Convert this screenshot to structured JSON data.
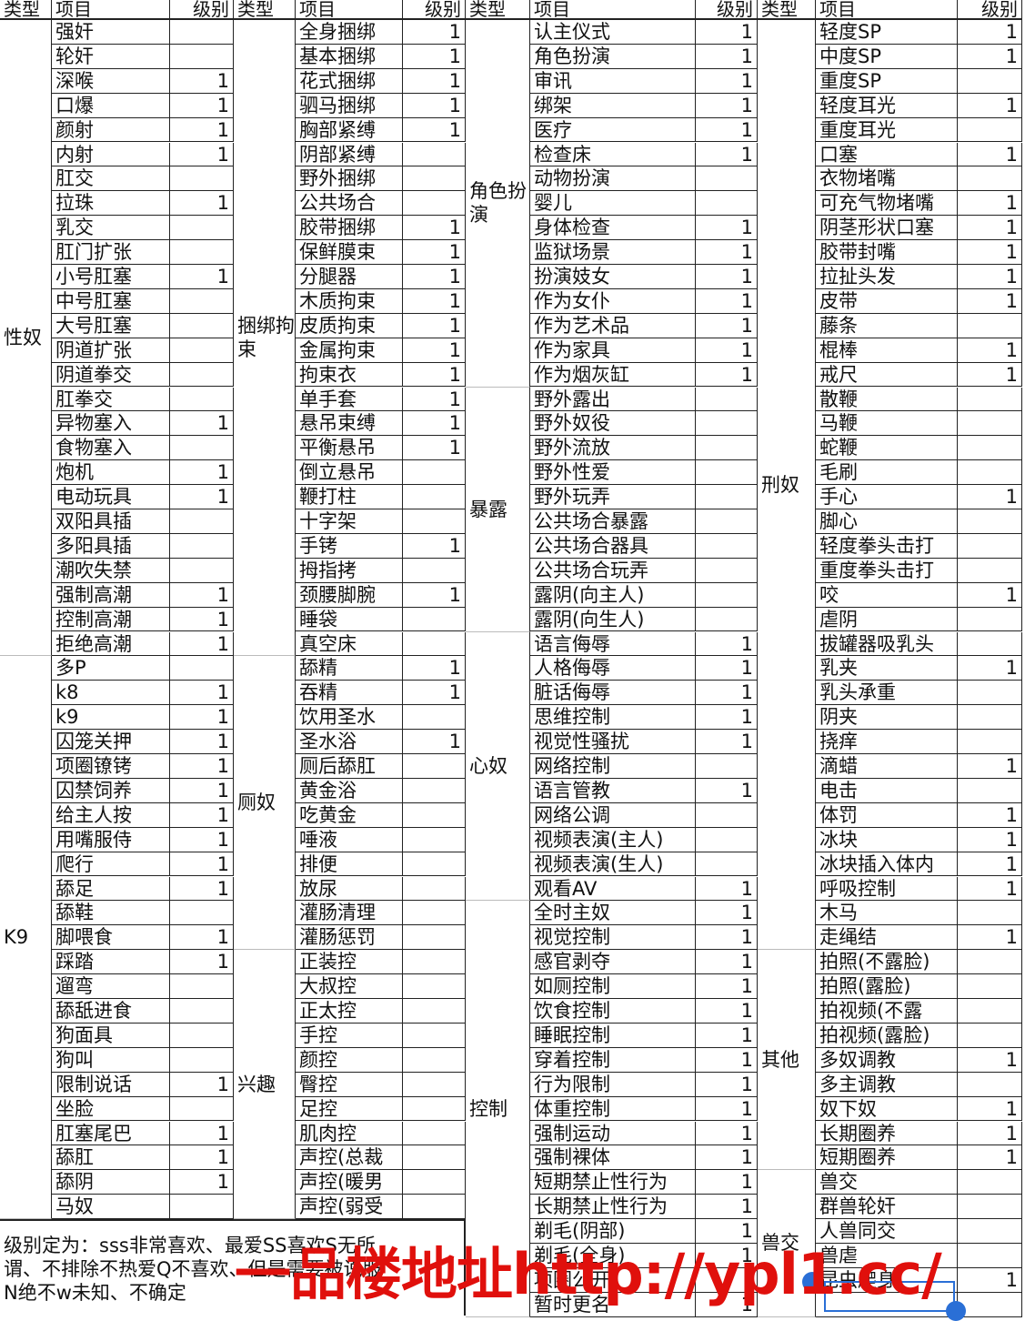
{
  "headers": {
    "type": "类型",
    "item": "项目",
    "level": "级别"
  },
  "groups": [
    {
      "sections": [
        {
          "type": "性奴",
          "rows": [
            [
              "强奸",
              ""
            ],
            [
              "轮奸",
              ""
            ],
            [
              "深喉",
              "1"
            ],
            [
              "口爆",
              "1"
            ],
            [
              "颜射",
              "1"
            ],
            [
              "内射",
              "1"
            ],
            [
              "肛交",
              ""
            ],
            [
              "拉珠",
              "1"
            ],
            [
              "乳交",
              ""
            ],
            [
              "肛门扩张",
              ""
            ],
            [
              "小号肛塞",
              "1"
            ],
            [
              "中号肛塞",
              ""
            ],
            [
              "大号肛塞",
              ""
            ],
            [
              "阴道扩张",
              ""
            ],
            [
              "阴道拳交",
              ""
            ],
            [
              "肛拳交",
              ""
            ],
            [
              "异物塞入",
              "1"
            ],
            [
              "食物塞入",
              ""
            ],
            [
              "炮机",
              "1"
            ],
            [
              "电动玩具",
              "1"
            ],
            [
              "双阳具插",
              ""
            ],
            [
              "多阳具插",
              ""
            ],
            [
              "潮吹失禁",
              ""
            ],
            [
              "强制高潮",
              "1"
            ],
            [
              "控制高潮",
              "1"
            ],
            [
              "拒绝高潮",
              "1"
            ]
          ]
        },
        {
          "type": "K9",
          "rows": [
            [
              "多P",
              ""
            ],
            [
              "k8",
              "1"
            ],
            [
              "k9",
              "1"
            ],
            [
              "囚笼关押",
              "1"
            ],
            [
              "项圈镣铐",
              "1"
            ],
            [
              "囚禁饲养",
              "1"
            ],
            [
              "给主人按",
              "1"
            ],
            [
              "用嘴服侍",
              "1"
            ],
            [
              "爬行",
              "1"
            ],
            [
              "舔足",
              "1"
            ],
            [
              "舔鞋",
              ""
            ],
            [
              "脚喂食",
              "1"
            ],
            [
              "踩踏",
              "1"
            ],
            [
              "遛弯",
              ""
            ],
            [
              "舔舐进食",
              ""
            ],
            [
              "狗面具",
              ""
            ],
            [
              "狗叫",
              ""
            ],
            [
              "限制说话",
              "1"
            ],
            [
              "坐脸",
              ""
            ],
            [
              "肛塞尾巴",
              "1"
            ],
            [
              "舔肛",
              "1"
            ],
            [
              "舔阴",
              "1"
            ],
            [
              "马奴",
              ""
            ]
          ]
        }
      ]
    },
    {
      "sections": [
        {
          "type": "捆绑拘束",
          "rows": [
            [
              "全身捆绑",
              "1"
            ],
            [
              "基本捆绑",
              "1"
            ],
            [
              "花式捆绑",
              "1"
            ],
            [
              "驷马捆绑",
              "1"
            ],
            [
              "胸部紧缚",
              "1"
            ],
            [
              "阴部紧缚",
              ""
            ],
            [
              "野外捆绑",
              ""
            ],
            [
              "公共场合",
              ""
            ],
            [
              "胶带捆绑",
              "1"
            ],
            [
              "保鲜膜束",
              "1"
            ],
            [
              "分腿器",
              "1"
            ],
            [
              "木质拘束",
              "1"
            ],
            [
              "皮质拘束",
              "1"
            ],
            [
              "金属拘束",
              "1"
            ],
            [
              "拘束衣",
              "1"
            ],
            [
              "单手套",
              "1"
            ],
            [
              "悬吊束缚",
              "1"
            ],
            [
              "平衡悬吊",
              "1"
            ],
            [
              "倒立悬吊",
              ""
            ],
            [
              "鞭打柱",
              ""
            ],
            [
              "十字架",
              ""
            ],
            [
              "手铐",
              "1"
            ],
            [
              "拇指拷",
              ""
            ],
            [
              "颈腰脚腕",
              "1"
            ],
            [
              "睡袋",
              ""
            ],
            [
              "真空床",
              ""
            ]
          ]
        },
        {
          "type": "厕奴",
          "rows": [
            [
              "舔精",
              "1"
            ],
            [
              "吞精",
              "1"
            ],
            [
              "饮用圣水",
              ""
            ],
            [
              "圣水浴",
              "1"
            ],
            [
              "厕后舔肛",
              ""
            ],
            [
              "黄金浴",
              ""
            ],
            [
              "吃黄金",
              ""
            ],
            [
              "唾液",
              ""
            ],
            [
              "排便",
              ""
            ],
            [
              "放尿",
              ""
            ],
            [
              "灌肠清理",
              ""
            ],
            [
              "灌肠惩罚",
              ""
            ]
          ]
        },
        {
          "type": "兴趣",
          "rows": [
            [
              "正装控",
              ""
            ],
            [
              "大叔控",
              ""
            ],
            [
              "正太控",
              ""
            ],
            [
              "手控",
              ""
            ],
            [
              "颜控",
              ""
            ],
            [
              "臀控",
              ""
            ],
            [
              "足控",
              ""
            ],
            [
              "肌肉控",
              ""
            ],
            [
              "声控(总裁",
              ""
            ],
            [
              "声控(暖男",
              ""
            ],
            [
              "声控(弱受",
              ""
            ]
          ]
        }
      ]
    },
    {
      "sections": [
        {
          "type": "角色扮演",
          "rows": [
            [
              "认主仪式",
              "1"
            ],
            [
              "角色扮演",
              "1"
            ],
            [
              "审讯",
              "1"
            ],
            [
              "绑架",
              "1"
            ],
            [
              "医疗",
              "1"
            ],
            [
              "检查床",
              "1"
            ],
            [
              "动物扮演",
              ""
            ],
            [
              "婴儿",
              ""
            ],
            [
              "身体检查",
              "1"
            ],
            [
              "监狱场景",
              "1"
            ],
            [
              "扮演妓女",
              "1"
            ],
            [
              "作为女仆",
              "1"
            ],
            [
              "作为艺术品",
              "1"
            ],
            [
              "作为家具",
              "1"
            ],
            [
              "作为烟灰缸",
              "1"
            ]
          ]
        },
        {
          "type": "暴露",
          "rows": [
            [
              "野外露出",
              ""
            ],
            [
              "野外奴役",
              ""
            ],
            [
              "野外流放",
              ""
            ],
            [
              "野外性爱",
              ""
            ],
            [
              "野外玩弄",
              ""
            ],
            [
              "公共场合暴露",
              ""
            ],
            [
              "公共场合器具",
              ""
            ],
            [
              "公共场合玩弄",
              ""
            ],
            [
              "露阴(向主人)",
              ""
            ],
            [
              "露阴(向生人)",
              ""
            ]
          ]
        },
        {
          "type": "心奴",
          "rows": [
            [
              "语言侮辱",
              "1"
            ],
            [
              "人格侮辱",
              "1"
            ],
            [
              "脏话侮辱",
              "1"
            ],
            [
              "思维控制",
              "1"
            ],
            [
              "视觉性骚扰",
              "1"
            ],
            [
              "网络控制",
              ""
            ],
            [
              "语言管教",
              "1"
            ],
            [
              "网络公调",
              ""
            ],
            [
              "视频表演(主人)",
              ""
            ],
            [
              "视频表演(生人)",
              ""
            ],
            [
              "观看AV",
              "1"
            ]
          ]
        },
        {
          "type": "控制",
          "rows": [
            [
              "全时主奴",
              "1"
            ],
            [
              "视觉控制",
              "1"
            ],
            [
              "感官剥夺",
              "1"
            ],
            [
              "如厕控制",
              "1"
            ],
            [
              "饮食控制",
              "1"
            ],
            [
              "睡眠控制",
              "1"
            ],
            [
              "穿着控制",
              "1"
            ],
            [
              "行为限制",
              "1"
            ],
            [
              "体重控制",
              "1"
            ],
            [
              "强制运动",
              "1"
            ],
            [
              "强制裸体",
              "1"
            ],
            [
              "短期禁止性行为",
              "1"
            ],
            [
              "长期禁止性行为",
              "1"
            ],
            [
              "剃毛(阴部)",
              "1"
            ],
            [
              "剃毛(全身)",
              "1"
            ],
            [
              "项圈公开",
              ""
            ],
            [
              "暂时更名",
              "1"
            ]
          ]
        }
      ]
    },
    {
      "sections": [
        {
          "type": "刑奴",
          "rows": [
            [
              "轻度SP",
              "1"
            ],
            [
              "中度SP",
              "1"
            ],
            [
              "重度SP",
              ""
            ],
            [
              "轻度耳光",
              "1"
            ],
            [
              "重度耳光",
              ""
            ],
            [
              "口塞",
              "1"
            ],
            [
              "衣物堵嘴",
              ""
            ],
            [
              "可充气物堵嘴",
              "1"
            ],
            [
              "阴茎形状口塞",
              "1"
            ],
            [
              "胶带封嘴",
              "1"
            ],
            [
              "拉扯头发",
              "1"
            ],
            [
              "皮带",
              "1"
            ],
            [
              "藤条",
              ""
            ],
            [
              "棍棒",
              "1"
            ],
            [
              "戒尺",
              "1"
            ],
            [
              "散鞭",
              ""
            ],
            [
              "马鞭",
              ""
            ],
            [
              "蛇鞭",
              ""
            ],
            [
              "毛刷",
              ""
            ],
            [
              "手心",
              "1"
            ],
            [
              "脚心",
              ""
            ],
            [
              "轻度拳头击打",
              ""
            ],
            [
              "重度拳头击打",
              ""
            ],
            [
              "咬",
              "1"
            ],
            [
              "虐阴",
              ""
            ],
            [
              "拔罐器吸乳头",
              ""
            ],
            [
              "乳夹",
              "1"
            ],
            [
              "乳头承重",
              ""
            ],
            [
              "阴夹",
              ""
            ],
            [
              "挠痒",
              ""
            ],
            [
              "滴蜡",
              "1"
            ],
            [
              "电击",
              ""
            ],
            [
              "体罚",
              "1"
            ],
            [
              "冰块",
              "1"
            ],
            [
              "冰块插入体内",
              "1"
            ],
            [
              "呼吸控制",
              "1"
            ],
            [
              "木马",
              ""
            ],
            [
              "走绳结",
              "1"
            ]
          ]
        },
        {
          "type": "其他",
          "rows": [
            [
              "拍照(不露脸)",
              ""
            ],
            [
              "拍照(露脸)",
              ""
            ],
            [
              "拍视频(不露",
              ""
            ],
            [
              "拍视频(露脸)",
              ""
            ],
            [
              "多奴调教",
              "1"
            ],
            [
              "多主调教",
              ""
            ],
            [
              "奴下奴",
              "1"
            ],
            [
              "长期圈养",
              "1"
            ],
            [
              "短期圈养",
              "1"
            ]
          ]
        },
        {
          "type": "兽交",
          "rows": [
            [
              "兽交",
              ""
            ],
            [
              "群兽轮奸",
              ""
            ],
            [
              "人兽同交",
              ""
            ],
            [
              "兽虐",
              ""
            ],
            [
              "昆虫爬身",
              "1"
            ],
            [
              "",
              ""
            ]
          ]
        }
      ]
    }
  ],
  "note": [
    "级别定为：sss非常喜欢、最爱SS喜欢S无所",
    "谓、不排除不热爱Q不喜欢、但是需要被说服",
    "N绝不w未知、不确定"
  ],
  "watermark": "一品楼地址http://ypl1.cc/",
  "colors": {
    "watermark": "#e0100c",
    "selection": "#2a6fd6"
  }
}
